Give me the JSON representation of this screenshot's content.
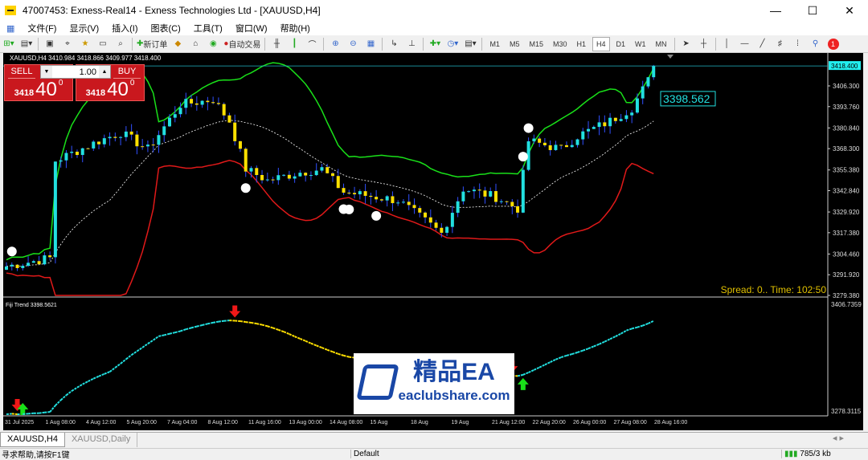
{
  "window": {
    "title": "47007453: Exness-Real14 - Exness Technologies Ltd - [XAUUSD,H4]"
  },
  "menu": [
    "文件(F)",
    "显示(V)",
    "插入(I)",
    "图表(C)",
    "工具(T)",
    "窗口(W)",
    "帮助(H)"
  ],
  "toolbar": {
    "new_order": "新订单",
    "auto_trading": "自动交易",
    "timeframes": [
      "M1",
      "M5",
      "M15",
      "M30",
      "H1",
      "H4",
      "D1",
      "W1",
      "MN"
    ],
    "active_timeframe": "H4",
    "notification_count": "1"
  },
  "chart": {
    "header": "XAUUSD,H4  3410.984 3418.866 3409.977 3418.400",
    "one_click": {
      "sell": "SELL",
      "buy": "BUY",
      "lot": "1.00",
      "sell_small": "3418",
      "sell_big": "40",
      "sell_sup": "0",
      "buy_small": "3418",
      "buy_big": "40",
      "buy_sup": "0"
    },
    "current_price_label": "3418.400",
    "price_callout": "3398.562",
    "price_axis": [
      "3406.300",
      "3393.760",
      "3380.840",
      "3368.300",
      "3355.380",
      "3342.840",
      "3329.920",
      "3317.380",
      "3304.460",
      "3291.920",
      "3279.380"
    ],
    "spread_time": "Spread: 0.. Time: 102:50",
    "price_range": [
      3279.38,
      3418.4
    ],
    "price_keypoints": [
      [
        0,
        3297
      ],
      [
        8,
        3302
      ],
      [
        9,
        3361
      ],
      [
        17,
        3373
      ],
      [
        21,
        3378
      ],
      [
        26,
        3368
      ],
      [
        32,
        3395
      ],
      [
        38,
        3398
      ],
      [
        41,
        3385
      ],
      [
        44,
        3356
      ],
      [
        48,
        3349
      ],
      [
        54,
        3354
      ],
      [
        58,
        3356
      ],
      [
        62,
        3342
      ],
      [
        68,
        3339
      ],
      [
        72,
        3337
      ],
      [
        80,
        3317
      ],
      [
        84,
        3344
      ],
      [
        90,
        3339
      ],
      [
        94,
        3332
      ],
      [
        96,
        3373
      ],
      [
        102,
        3368
      ],
      [
        105,
        3376
      ],
      [
        111,
        3385
      ],
      [
        115,
        3393
      ],
      [
        119,
        3415
      ]
    ],
    "colors": {
      "bull": "#22e0e0",
      "bear": "#ffe000",
      "upper_band": "#19e019",
      "lower_band": "#e01919",
      "mid_band": "#ffffff",
      "axis": "#cccccc"
    }
  },
  "indicator": {
    "label": "Fiji Trend 3398.5621",
    "max_label": "3406.7359",
    "min_label": "3278.3115",
    "range": [
      3278.3115,
      3406.7359
    ]
  },
  "time_axis": [
    "31 Jul 2025",
    "1 Aug 08:00",
    "4 Aug 12:00",
    "5 Aug 20:00",
    "7 Aug 04:00",
    "8 Aug 12:00",
    "11 Aug 16:00",
    "13 Aug 00:00",
    "14 Aug 08:00",
    "15 Aug",
    "18 Aug",
    "19 Aug",
    "21 Aug 12:00",
    "22 Aug 20:00",
    "26 Aug 00:00",
    "27 Aug 08:00",
    "28 Aug 16:00"
  ],
  "tabs": [
    "XAUUSD,H4",
    "XAUUSD,Daily"
  ],
  "status": {
    "help": "寻求帮助,请按F1键",
    "profile": "Default",
    "traffic": "785/3 kb"
  },
  "watermark": {
    "title": "精品EA",
    "url": "eaclubshare.com"
  }
}
